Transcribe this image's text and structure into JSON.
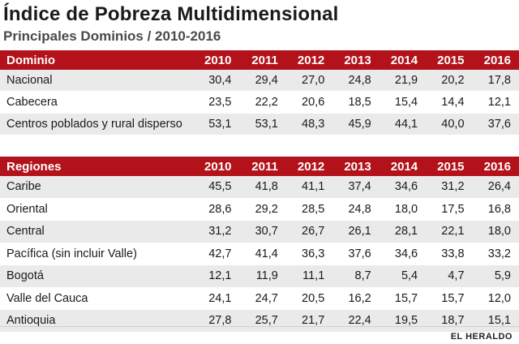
{
  "title": "Índice de Pobreza Multidimensional",
  "subtitle": "Principales Dominios / 2010-2016",
  "years": [
    "2010",
    "2011",
    "2012",
    "2013",
    "2014",
    "2015",
    "2016"
  ],
  "dominio": {
    "header": "Dominio",
    "rows": [
      {
        "label": "Nacional",
        "values": [
          "30,4",
          "29,4",
          "27,0",
          "24,8",
          "21,9",
          "20,2",
          "17,8"
        ]
      },
      {
        "label": "Cabecera",
        "values": [
          "23,5",
          "22,2",
          "20,6",
          "18,5",
          "15,4",
          "14,4",
          "12,1"
        ]
      },
      {
        "label": "Centros poblados y rural disperso",
        "values": [
          "53,1",
          "53,1",
          "48,3",
          "45,9",
          "44,1",
          "40,0",
          "37,6"
        ]
      }
    ]
  },
  "regiones": {
    "header": "Regiones",
    "rows": [
      {
        "label": "Caribe",
        "values": [
          "45,5",
          "41,8",
          "41,1",
          "37,4",
          "34,6",
          "31,2",
          "26,4"
        ]
      },
      {
        "label": "Oriental",
        "values": [
          "28,6",
          "29,2",
          "28,5",
          "24,8",
          "18,0",
          "17,5",
          "16,8"
        ]
      },
      {
        "label": "Central",
        "values": [
          "31,2",
          "30,7",
          "26,7",
          "26,1",
          "28,1",
          "22,1",
          "18,0"
        ]
      },
      {
        "label": "Pacífica (sin incluir Valle)",
        "values": [
          "42,7",
          "41,4",
          "36,3",
          "37,6",
          "34,6",
          "33,8",
          "33,2"
        ]
      },
      {
        "label": "Bogotá",
        "values": [
          "12,1",
          "11,9",
          "11,1",
          "8,7",
          "5,4",
          "4,7",
          "5,9"
        ]
      },
      {
        "label": "Valle del Cauca",
        "values": [
          "24,1",
          "24,7",
          "20,5",
          "16,2",
          "15,7",
          "15,7",
          "12,0"
        ]
      },
      {
        "label": "Antioquia",
        "values": [
          "27,8",
          "25,7",
          "21,7",
          "22,4",
          "19,5",
          "18,7",
          "15,1"
        ]
      }
    ]
  },
  "footer": "EL HERALDO",
  "colors": {
    "header_bg": "#b3121a",
    "row_alt_bg": "#eaeaea"
  }
}
